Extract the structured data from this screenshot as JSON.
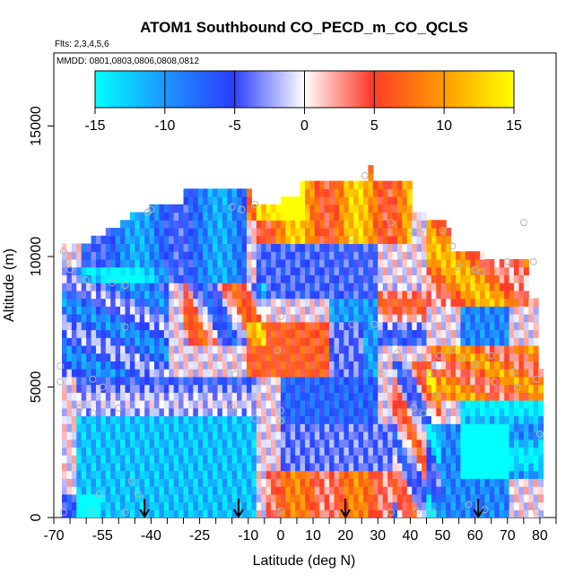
{
  "chart_data": {
    "type": "heatmap",
    "title": "ATOM1 Southbound CO_PECD_m_CO_QCLS",
    "flights_note": "Flts: 2,3,4,5,6",
    "dates_note": "MMDD: 0801,0803,0806,0808,0812",
    "xlabel": "Latitude (deg N)",
    "ylabel": "Altitude (m)",
    "xlim": [
      -70,
      85
    ],
    "ylim": [
      0,
      17800
    ],
    "x_ticks": [
      -70,
      -55,
      -40,
      -25,
      -10,
      0,
      10,
      20,
      30,
      40,
      50,
      60,
      70,
      80
    ],
    "x_tick_labels": [
      "-70",
      "-55",
      "-40",
      "-25",
      "-10",
      "0",
      "10",
      "20",
      "30",
      "40",
      "50",
      "60",
      "70",
      "80"
    ],
    "x_minor_ticks": [
      -65,
      -60,
      -50,
      -45,
      -35,
      -30,
      -20,
      -15,
      -5,
      5,
      15,
      25,
      35,
      45,
      55,
      65,
      75,
      85
    ],
    "y_ticks": [
      0,
      5000,
      10000,
      15000
    ],
    "y_tick_labels": [
      "0",
      "5000",
      "10000",
      "15000"
    ],
    "colorbar": {
      "ticks": [
        -15,
        -10,
        -5,
        0,
        5,
        10,
        15
      ],
      "tick_labels": [
        "-15",
        "-10",
        "-5",
        "0",
        "5",
        "10",
        "15"
      ],
      "range": [
        -15,
        15
      ],
      "colors": [
        "#00ffff",
        "#1e8fff",
        "#2a3cff",
        "#ffffff",
        "#ff3a2a",
        "#ff9a00",
        "#ffff00"
      ]
    },
    "flight_marker_latitudes": [
      -42,
      -13,
      20,
      61
    ],
    "sample_points": [
      [
        -67,
        10200
      ],
      [
        -66,
        9800
      ],
      [
        -65,
        9500
      ],
      [
        -60,
        9100
      ],
      [
        -58,
        8800
      ],
      [
        -52,
        9000
      ],
      [
        -48,
        8900
      ],
      [
        -48,
        7300
      ],
      [
        -68,
        5800
      ],
      [
        -68,
        5200
      ],
      [
        -58,
        5300
      ],
      [
        -55,
        5000
      ],
      [
        -62,
        4200
      ],
      [
        -58,
        4000
      ],
      [
        -50,
        4200
      ],
      [
        -67,
        200
      ],
      [
        -41,
        11700
      ],
      [
        -40,
        11800
      ],
      [
        -15,
        11900
      ],
      [
        -12,
        11800
      ],
      [
        -8,
        12000
      ],
      [
        -14,
        5500
      ],
      [
        -15,
        4200
      ],
      [
        -8,
        3800
      ],
      [
        -1,
        6400
      ],
      [
        0,
        7700
      ],
      [
        0,
        4100
      ],
      [
        0,
        3700
      ],
      [
        -1,
        200
      ],
      [
        0,
        250
      ],
      [
        22,
        10700
      ],
      [
        26,
        13100
      ],
      [
        34,
        11300
      ],
      [
        40,
        11000
      ],
      [
        43,
        10900
      ],
      [
        50,
        11000
      ],
      [
        53,
        10400
      ],
      [
        55,
        9600
      ],
      [
        60,
        9500
      ],
      [
        62,
        9400
      ],
      [
        70,
        9800
      ],
      [
        78,
        9800
      ],
      [
        75,
        11300
      ],
      [
        22,
        7400
      ],
      [
        29,
        7400
      ],
      [
        31,
        5500
      ],
      [
        36,
        6300
      ],
      [
        43,
        6100
      ],
      [
        46,
        5500
      ],
      [
        49,
        6200
      ],
      [
        53,
        6400
      ],
      [
        56,
        6100
      ],
      [
        60,
        5900
      ],
      [
        65,
        6200
      ],
      [
        66,
        5200
      ],
      [
        72,
        5600
      ],
      [
        73,
        5000
      ],
      [
        79,
        5300
      ],
      [
        41,
        4200
      ],
      [
        44,
        4000
      ],
      [
        48,
        4700
      ],
      [
        80,
        3200
      ],
      [
        34,
        200
      ],
      [
        42,
        250
      ],
      [
        47,
        200
      ],
      [
        58,
        500
      ],
      [
        63,
        300
      ],
      [
        79,
        250
      ],
      [
        -48,
        200
      ],
      [
        -58,
        200
      ],
      [
        -56,
        900
      ],
      [
        -44,
        900
      ],
      [
        -46,
        1400
      ]
    ]
  }
}
